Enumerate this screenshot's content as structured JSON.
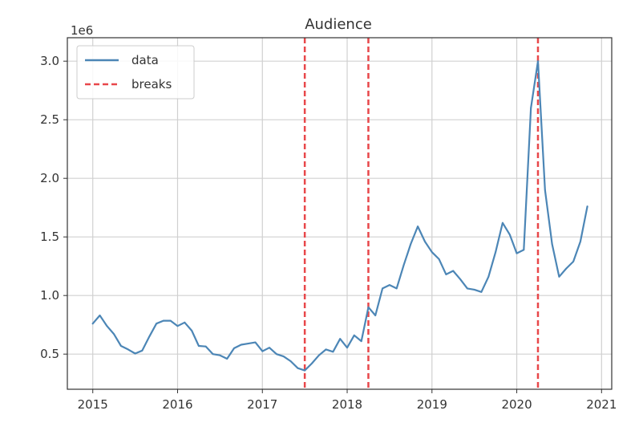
{
  "chart_data": {
    "type": "line",
    "title": "Audience",
    "offset_text": "1e6",
    "xlabel": "",
    "ylabel": "",
    "xlim": [
      2014.7,
      2021.12
    ],
    "ylim": [
      200000,
      3200000
    ],
    "x_ticks": [
      2015,
      2016,
      2017,
      2018,
      2019,
      2020,
      2021
    ],
    "x_tick_labels": [
      "2015",
      "2016",
      "2017",
      "2018",
      "2019",
      "2020",
      "2021"
    ],
    "y_ticks": [
      500000,
      1000000,
      1500000,
      2000000,
      2500000,
      3000000
    ],
    "y_tick_labels": [
      "0.5",
      "1.0",
      "1.5",
      "2.0",
      "2.5",
      "3.0"
    ],
    "grid": true,
    "legend_position": "top-left",
    "series": [
      {
        "name": "data",
        "color": "#4c86b6",
        "x": [
          2015.0,
          2015.083,
          2015.167,
          2015.25,
          2015.333,
          2015.417,
          2015.5,
          2015.583,
          2015.667,
          2015.75,
          2015.833,
          2015.917,
          2016.0,
          2016.083,
          2016.167,
          2016.25,
          2016.333,
          2016.417,
          2016.5,
          2016.583,
          2016.667,
          2016.75,
          2016.833,
          2016.917,
          2017.0,
          2017.083,
          2017.167,
          2017.25,
          2017.333,
          2017.417,
          2017.5,
          2017.583,
          2017.667,
          2017.75,
          2017.833,
          2017.917,
          2018.0,
          2018.083,
          2018.167,
          2018.25,
          2018.333,
          2018.417,
          2018.5,
          2018.583,
          2018.667,
          2018.75,
          2018.833,
          2018.917,
          2019.0,
          2019.083,
          2019.167,
          2019.25,
          2019.333,
          2019.417,
          2019.5,
          2019.583,
          2019.667,
          2019.75,
          2019.833,
          2019.917,
          2020.0,
          2020.083,
          2020.167,
          2020.25,
          2020.333,
          2020.417,
          2020.5,
          2020.583,
          2020.667,
          2020.75,
          2020.833
        ],
        "y": [
          760000,
          830000,
          740000,
          670000,
          570000,
          540000,
          505000,
          530000,
          650000,
          760000,
          785000,
          785000,
          740000,
          770000,
          700000,
          570000,
          565000,
          500000,
          490000,
          460000,
          550000,
          580000,
          590000,
          600000,
          525000,
          555000,
          500000,
          480000,
          440000,
          380000,
          360000,
          420000,
          490000,
          540000,
          520000,
          630000,
          555000,
          660000,
          610000,
          900000,
          830000,
          1060000,
          1090000,
          1060000,
          1260000,
          1440000,
          1590000,
          1460000,
          1370000,
          1310000,
          1180000,
          1210000,
          1140000,
          1060000,
          1050000,
          1030000,
          1160000,
          1370000,
          1620000,
          1520000,
          1360000,
          1390000,
          2600000,
          3000000,
          1900000,
          1440000,
          1160000,
          1230000,
          1290000,
          1460000,
          1760000
        ]
      }
    ],
    "breaks": {
      "name": "breaks",
      "color": "#e8474a",
      "x": [
        2017.5,
        2018.25,
        2020.25
      ]
    }
  }
}
